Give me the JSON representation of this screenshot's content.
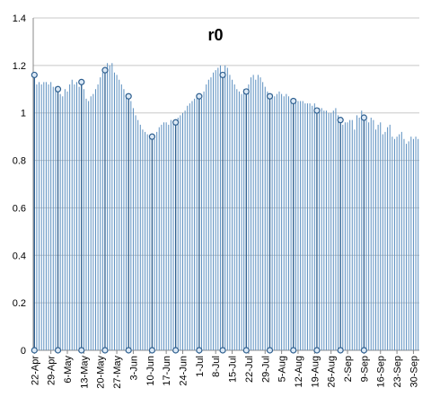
{
  "chart_data": {
    "type": "stem",
    "title": "r0",
    "categories": [
      "22-Apr",
      null,
      null,
      null,
      null,
      null,
      null,
      "29-Apr",
      null,
      null,
      null,
      null,
      null,
      null,
      "6-May",
      null,
      null,
      null,
      null,
      null,
      null,
      "13-May",
      null,
      null,
      null,
      null,
      null,
      null,
      "20-May",
      null,
      null,
      null,
      null,
      null,
      null,
      "27-May",
      null,
      null,
      null,
      null,
      null,
      null,
      "3-Jun",
      null,
      null,
      null,
      null,
      null,
      null,
      "10-Jun",
      null,
      null,
      null,
      null,
      null,
      null,
      "17-Jun",
      null,
      null,
      null,
      null,
      null,
      null,
      "24-Jun",
      null,
      null,
      null,
      null,
      null,
      null,
      "1-Jul",
      null,
      null,
      null,
      null,
      null,
      null,
      "8-Jul",
      null,
      null,
      null,
      null,
      null,
      null,
      "15-Jul",
      null,
      null,
      null,
      null,
      null,
      null,
      "22-Jul",
      null,
      null,
      null,
      null,
      null,
      null,
      "29-Jul",
      null,
      null,
      null,
      null,
      null,
      null,
      "5-Aug",
      null,
      null,
      null,
      null,
      null,
      null,
      "12-Aug",
      null,
      null,
      null,
      null,
      null,
      null,
      "19-Aug",
      null,
      null,
      null,
      null,
      null,
      null,
      "26-Aug",
      null,
      null,
      null,
      null,
      null,
      null,
      "2-Sep",
      null,
      null,
      null,
      null,
      null,
      null,
      "9-Sep",
      null,
      null,
      null,
      null,
      null,
      null,
      "16-Sep",
      null,
      null,
      null,
      null,
      null,
      null,
      "23-Sep",
      null,
      null,
      null,
      null,
      null,
      null,
      "30-Sep",
      null,
      null
    ],
    "series": [
      {
        "color": "#5b8fc0",
        "values": [
          1.16,
          1.12,
          1.13,
          1.12,
          1.13,
          1.13,
          1.12,
          1.13,
          1.11,
          1.11,
          1.1,
          1.08,
          1.07,
          1.1,
          1.09,
          1.12,
          1.14,
          1.12,
          1.13,
          1.11,
          1.13,
          1.1,
          1.06,
          1.05,
          1.07,
          1.08,
          1.1,
          1.12,
          1.15,
          1.17,
          1.18,
          1.21,
          1.2,
          1.21,
          1.17,
          1.16,
          1.14,
          1.12,
          1.1,
          1.08,
          1.07,
          1.05,
          1.02,
          0.99,
          0.97,
          0.95,
          0.93,
          0.92,
          0.91,
          0.9,
          0.9,
          0.89,
          0.92,
          0.94,
          0.95,
          0.96,
          0.96,
          0.95,
          0.97,
          0.96,
          0.96,
          0.98,
          0.99,
          1.0,
          1.01,
          1.03,
          1.04,
          1.05,
          1.06,
          1.07,
          1.07,
          1.06,
          1.09,
          1.12,
          1.14,
          1.15,
          1.17,
          1.18,
          1.19,
          1.2,
          1.16,
          1.2,
          1.19,
          1.16,
          1.14,
          1.12,
          1.1,
          1.09,
          1.08,
          1.1,
          1.09,
          1.12,
          1.15,
          1.16,
          1.14,
          1.16,
          1.15,
          1.13,
          1.11,
          1.09,
          1.07,
          1.08,
          1.07,
          1.08,
          1.09,
          1.08,
          1.07,
          1.08,
          1.07,
          1.06,
          1.05,
          1.06,
          1.05,
          1.05,
          1.05,
          1.04,
          1.04,
          1.04,
          1.03,
          1.04,
          1.01,
          1.02,
          1.02,
          1.01,
          1.01,
          1.0,
          1.0,
          1.01,
          1.02,
          0.99,
          0.97,
          0.95,
          0.96,
          0.96,
          0.97,
          0.97,
          0.93,
          0.99,
          0.98,
          1.01,
          0.98,
          0.97,
          0.96,
          0.98,
          0.97,
          0.93,
          0.95,
          0.96,
          0.91,
          0.92,
          0.94,
          0.95,
          0.9,
          0.89,
          0.9,
          0.91,
          0.92,
          0.89,
          0.87,
          0.88,
          0.9,
          0.89,
          0.9,
          0.89
        ]
      },
      {
        "color": "#2e5f8f",
        "marker": true,
        "values": [
          1.16,
          null,
          null,
          null,
          null,
          null,
          null,
          null,
          null,
          null,
          1.1,
          null,
          null,
          null,
          null,
          null,
          null,
          null,
          null,
          null,
          1.13,
          null,
          null,
          null,
          null,
          null,
          null,
          null,
          null,
          null,
          1.18,
          null,
          null,
          null,
          null,
          null,
          null,
          null,
          null,
          null,
          1.07,
          null,
          null,
          null,
          null,
          null,
          null,
          null,
          null,
          null,
          0.9,
          null,
          null,
          null,
          null,
          null,
          null,
          null,
          null,
          null,
          0.96,
          null,
          null,
          null,
          null,
          null,
          null,
          null,
          null,
          null,
          1.07,
          null,
          null,
          null,
          null,
          null,
          null,
          null,
          null,
          null,
          1.16,
          null,
          null,
          null,
          null,
          null,
          null,
          null,
          null,
          null,
          1.09,
          null,
          null,
          null,
          null,
          null,
          null,
          null,
          null,
          null,
          1.07,
          null,
          null,
          null,
          null,
          null,
          null,
          null,
          null,
          null,
          1.05,
          null,
          null,
          null,
          null,
          null,
          null,
          null,
          null,
          null,
          1.01,
          null,
          null,
          null,
          null,
          null,
          null,
          null,
          null,
          null,
          0.97,
          null,
          null,
          null,
          null,
          null,
          null,
          null,
          null,
          null,
          0.98,
          null,
          null,
          null,
          null,
          null,
          null,
          null,
          null,
          null,
          null,
          null,
          null,
          null,
          null,
          null,
          null,
          null,
          null,
          null,
          null,
          null,
          null,
          null
        ]
      }
    ],
    "ylim": [
      0,
      1.4
    ],
    "yticks": [
      0,
      0.2,
      0.4,
      0.6,
      0.8,
      1,
      1.2,
      1.4
    ],
    "grid": true
  }
}
